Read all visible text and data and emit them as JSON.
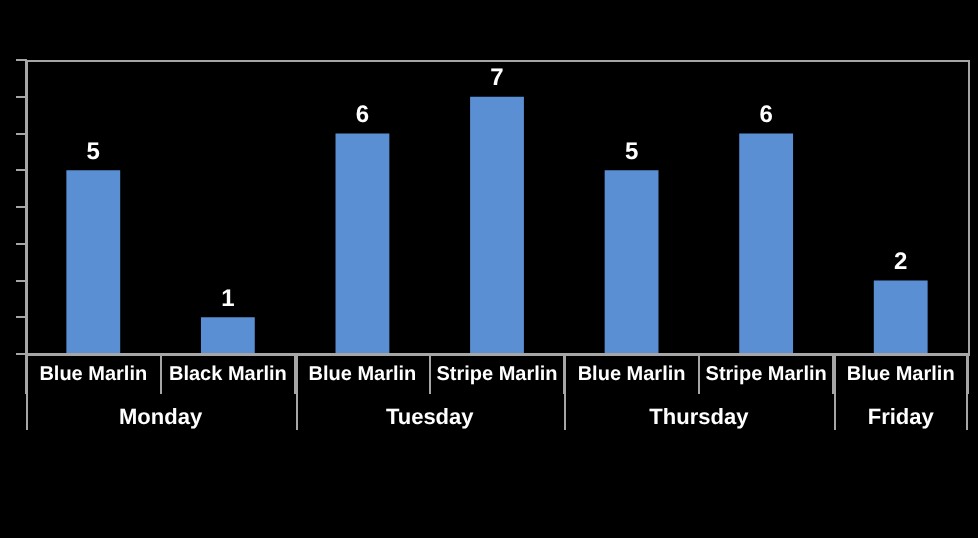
{
  "chart_data": {
    "type": "bar",
    "categories": [
      "Blue Marlin",
      "Black Marlin",
      "Blue Marlin",
      "Stripe Marlin",
      "Blue Marlin",
      "Stripe Marlin",
      "Blue Marlin"
    ],
    "values": [
      5,
      1,
      6,
      7,
      5,
      6,
      2
    ],
    "color": "#5b8fd4",
    "ylim": [
      0,
      8
    ],
    "yticks": [
      {
        "value": 0,
        "label": null
      },
      {
        "value": 1,
        "label": null
      },
      {
        "value": 2,
        "label": null
      },
      {
        "value": 3,
        "label": null
      },
      {
        "value": 4,
        "label": null
      },
      {
        "value": 5,
        "label": null
      },
      {
        "value": 6,
        "label": null
      },
      {
        "value": 7,
        "label": null
      },
      {
        "value": 8,
        "label": null
      }
    ],
    "data_labels": true,
    "grid": false,
    "legend": false,
    "annotations": [
      "Monday",
      "Tuesday",
      "Thursday",
      "Friday"
    ]
  }
}
